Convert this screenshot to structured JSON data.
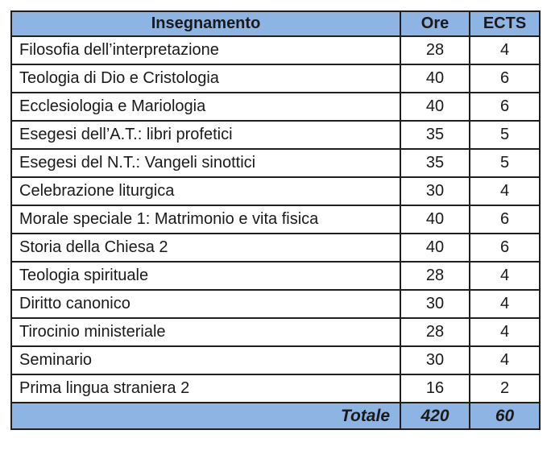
{
  "table": {
    "headers": {
      "course": "Insegnamento",
      "hours": "Ore",
      "credits": "ECTS"
    },
    "rows": [
      {
        "course": "Filosofia dell’interpretazione",
        "hours": "28",
        "credits": "4"
      },
      {
        "course": "Teologia di Dio e Cristologia",
        "hours": "40",
        "credits": "6"
      },
      {
        "course": "Ecclesiologia e Mariologia",
        "hours": "40",
        "credits": "6"
      },
      {
        "course": "Esegesi dell’A.T.: libri profetici",
        "hours": "35",
        "credits": "5"
      },
      {
        "course": "Esegesi del N.T.: Vangeli sinottici",
        "hours": "35",
        "credits": "5"
      },
      {
        "course": "Celebrazione liturgica",
        "hours": "30",
        "credits": "4"
      },
      {
        "course": "Morale speciale 1: Matrimonio e vita fisica",
        "hours": "40",
        "credits": "6"
      },
      {
        "course": "Storia della Chiesa 2",
        "hours": "40",
        "credits": "6"
      },
      {
        "course": "Teologia spirituale",
        "hours": "28",
        "credits": "4"
      },
      {
        "course": "Diritto canonico",
        "hours": "30",
        "credits": "4"
      },
      {
        "course": "Tirocinio ministeriale",
        "hours": "28",
        "credits": "4"
      },
      {
        "course": "Seminario",
        "hours": "30",
        "credits": "4"
      },
      {
        "course": "Prima lingua straniera 2",
        "hours": "16",
        "credits": "2"
      }
    ],
    "footer": {
      "label": "Totale",
      "hours": "420",
      "credits": "60"
    },
    "colors": {
      "header_fill": "#8eb4e3",
      "border": "#1f1f1f",
      "text": "#1a1a1a"
    }
  }
}
